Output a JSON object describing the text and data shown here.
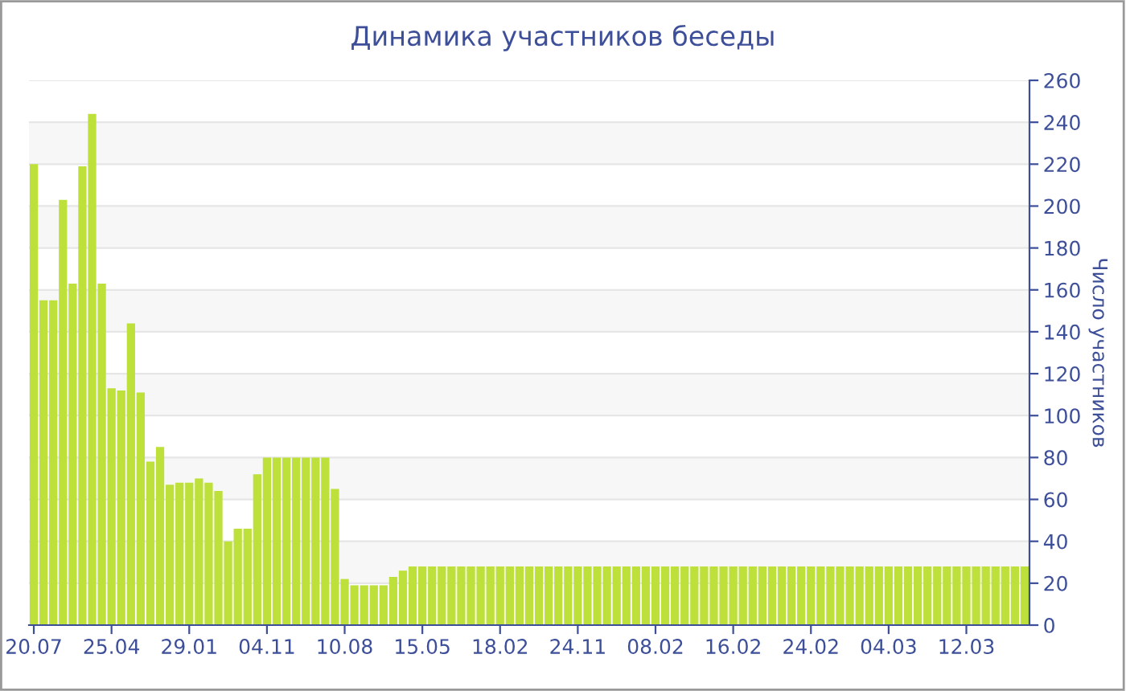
{
  "chart_data": {
    "type": "bar",
    "title": "Динамика участников беседы",
    "ylabel": "Число участников",
    "categories": [
      "20.07",
      null,
      null,
      null,
      null,
      null,
      null,
      null,
      "25.04",
      null,
      null,
      null,
      null,
      null,
      null,
      null,
      "29.01",
      null,
      null,
      null,
      null,
      null,
      null,
      null,
      "04.11",
      null,
      null,
      null,
      null,
      null,
      null,
      null,
      "10.08",
      null,
      null,
      null,
      null,
      null,
      null,
      null,
      "15.05",
      null,
      null,
      null,
      null,
      null,
      null,
      null,
      "18.02",
      null,
      null,
      null,
      null,
      null,
      null,
      null,
      "24.11",
      null,
      null,
      null,
      null,
      null,
      null,
      null,
      "08.02",
      null,
      null,
      null,
      null,
      null,
      null,
      null,
      "16.02",
      null,
      null,
      null,
      null,
      null,
      null,
      null,
      "24.02",
      null,
      null,
      null,
      null,
      null,
      null,
      null,
      "04.03",
      null,
      null,
      null,
      null,
      null,
      null,
      null,
      "12.03",
      null,
      null,
      null,
      null,
      null,
      null
    ],
    "values": [
      220,
      155,
      155,
      203,
      163,
      219,
      244,
      163,
      113,
      112,
      144,
      111,
      78,
      85,
      67,
      68,
      68,
      70,
      68,
      64,
      40,
      46,
      46,
      72,
      80,
      80,
      80,
      80,
      80,
      80,
      80,
      65,
      22,
      19,
      19,
      19,
      19,
      23,
      26,
      28,
      28,
      28,
      28,
      28,
      28,
      28,
      28,
      28,
      28,
      28,
      28,
      28,
      28,
      28,
      28,
      28,
      28,
      28,
      28,
      28,
      28,
      28,
      28,
      28,
      28,
      28,
      28,
      28,
      28,
      28,
      28,
      28,
      28,
      28,
      28,
      28,
      28,
      28,
      28,
      28,
      28,
      28,
      28,
      28,
      28,
      28,
      28,
      28,
      28,
      28,
      28,
      28,
      28,
      28,
      28,
      28,
      28,
      28,
      28,
      28,
      28,
      28,
      28
    ],
    "color": "#bde03a",
    "ylim": [
      0,
      260
    ],
    "yticks": [
      0,
      20,
      40,
      60,
      80,
      100,
      120,
      140,
      160,
      180,
      200,
      220,
      240,
      260
    ],
    "grid": "y"
  }
}
